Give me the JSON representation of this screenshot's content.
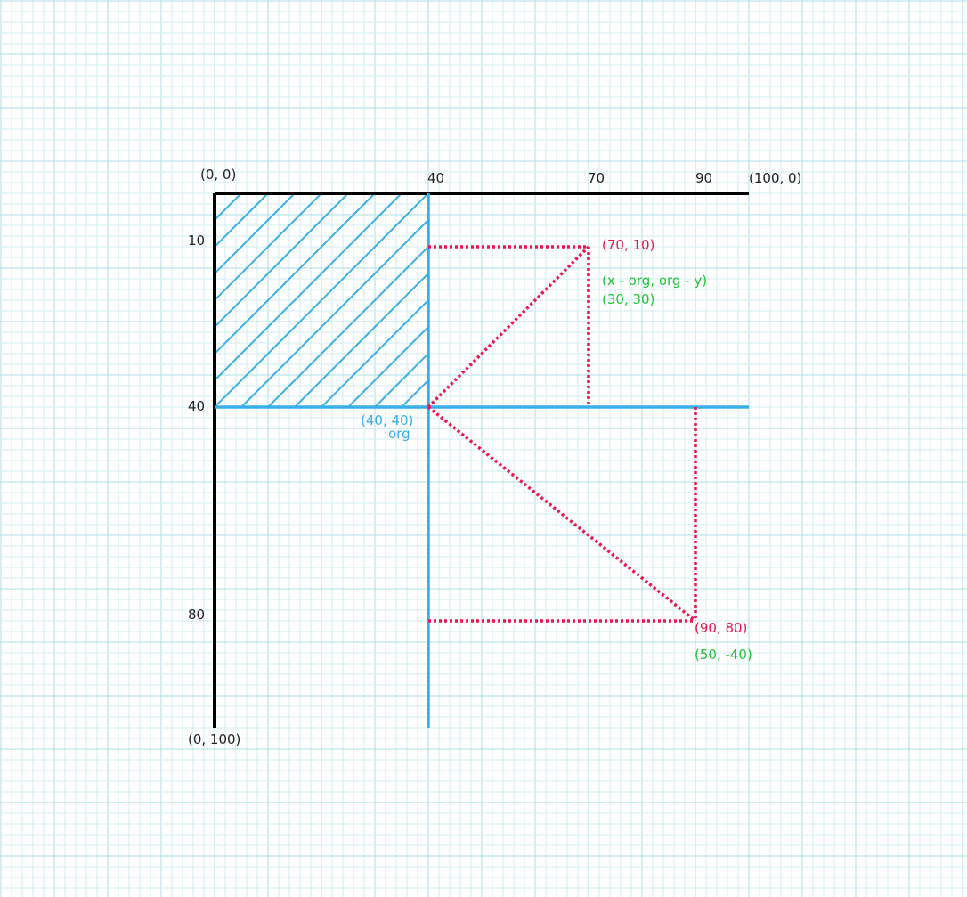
{
  "colors": {
    "grid_minor": "#d3eef1",
    "grid_major": "#a9dde3",
    "axis": "#000000",
    "blue": "#3aaee8",
    "red": "#e8174f",
    "green": "#21c43a"
  },
  "labels": {
    "origin_top_left": "(0, 0)",
    "top_40": "40",
    "top_70": "70",
    "top_90": "90",
    "top_right": "(100, 0)",
    "left_10": "10",
    "left_40": "40",
    "left_80": "80",
    "bottom_left": "(0, 100)",
    "org_coord": "(40, 40)",
    "org_name": "org",
    "point_a": "(70, 10)",
    "formula": "(x - org, org - y)",
    "point_a_rel": "(30, 30)",
    "point_b": "(90, 80)",
    "point_b_rel": "(50, -40)"
  }
}
